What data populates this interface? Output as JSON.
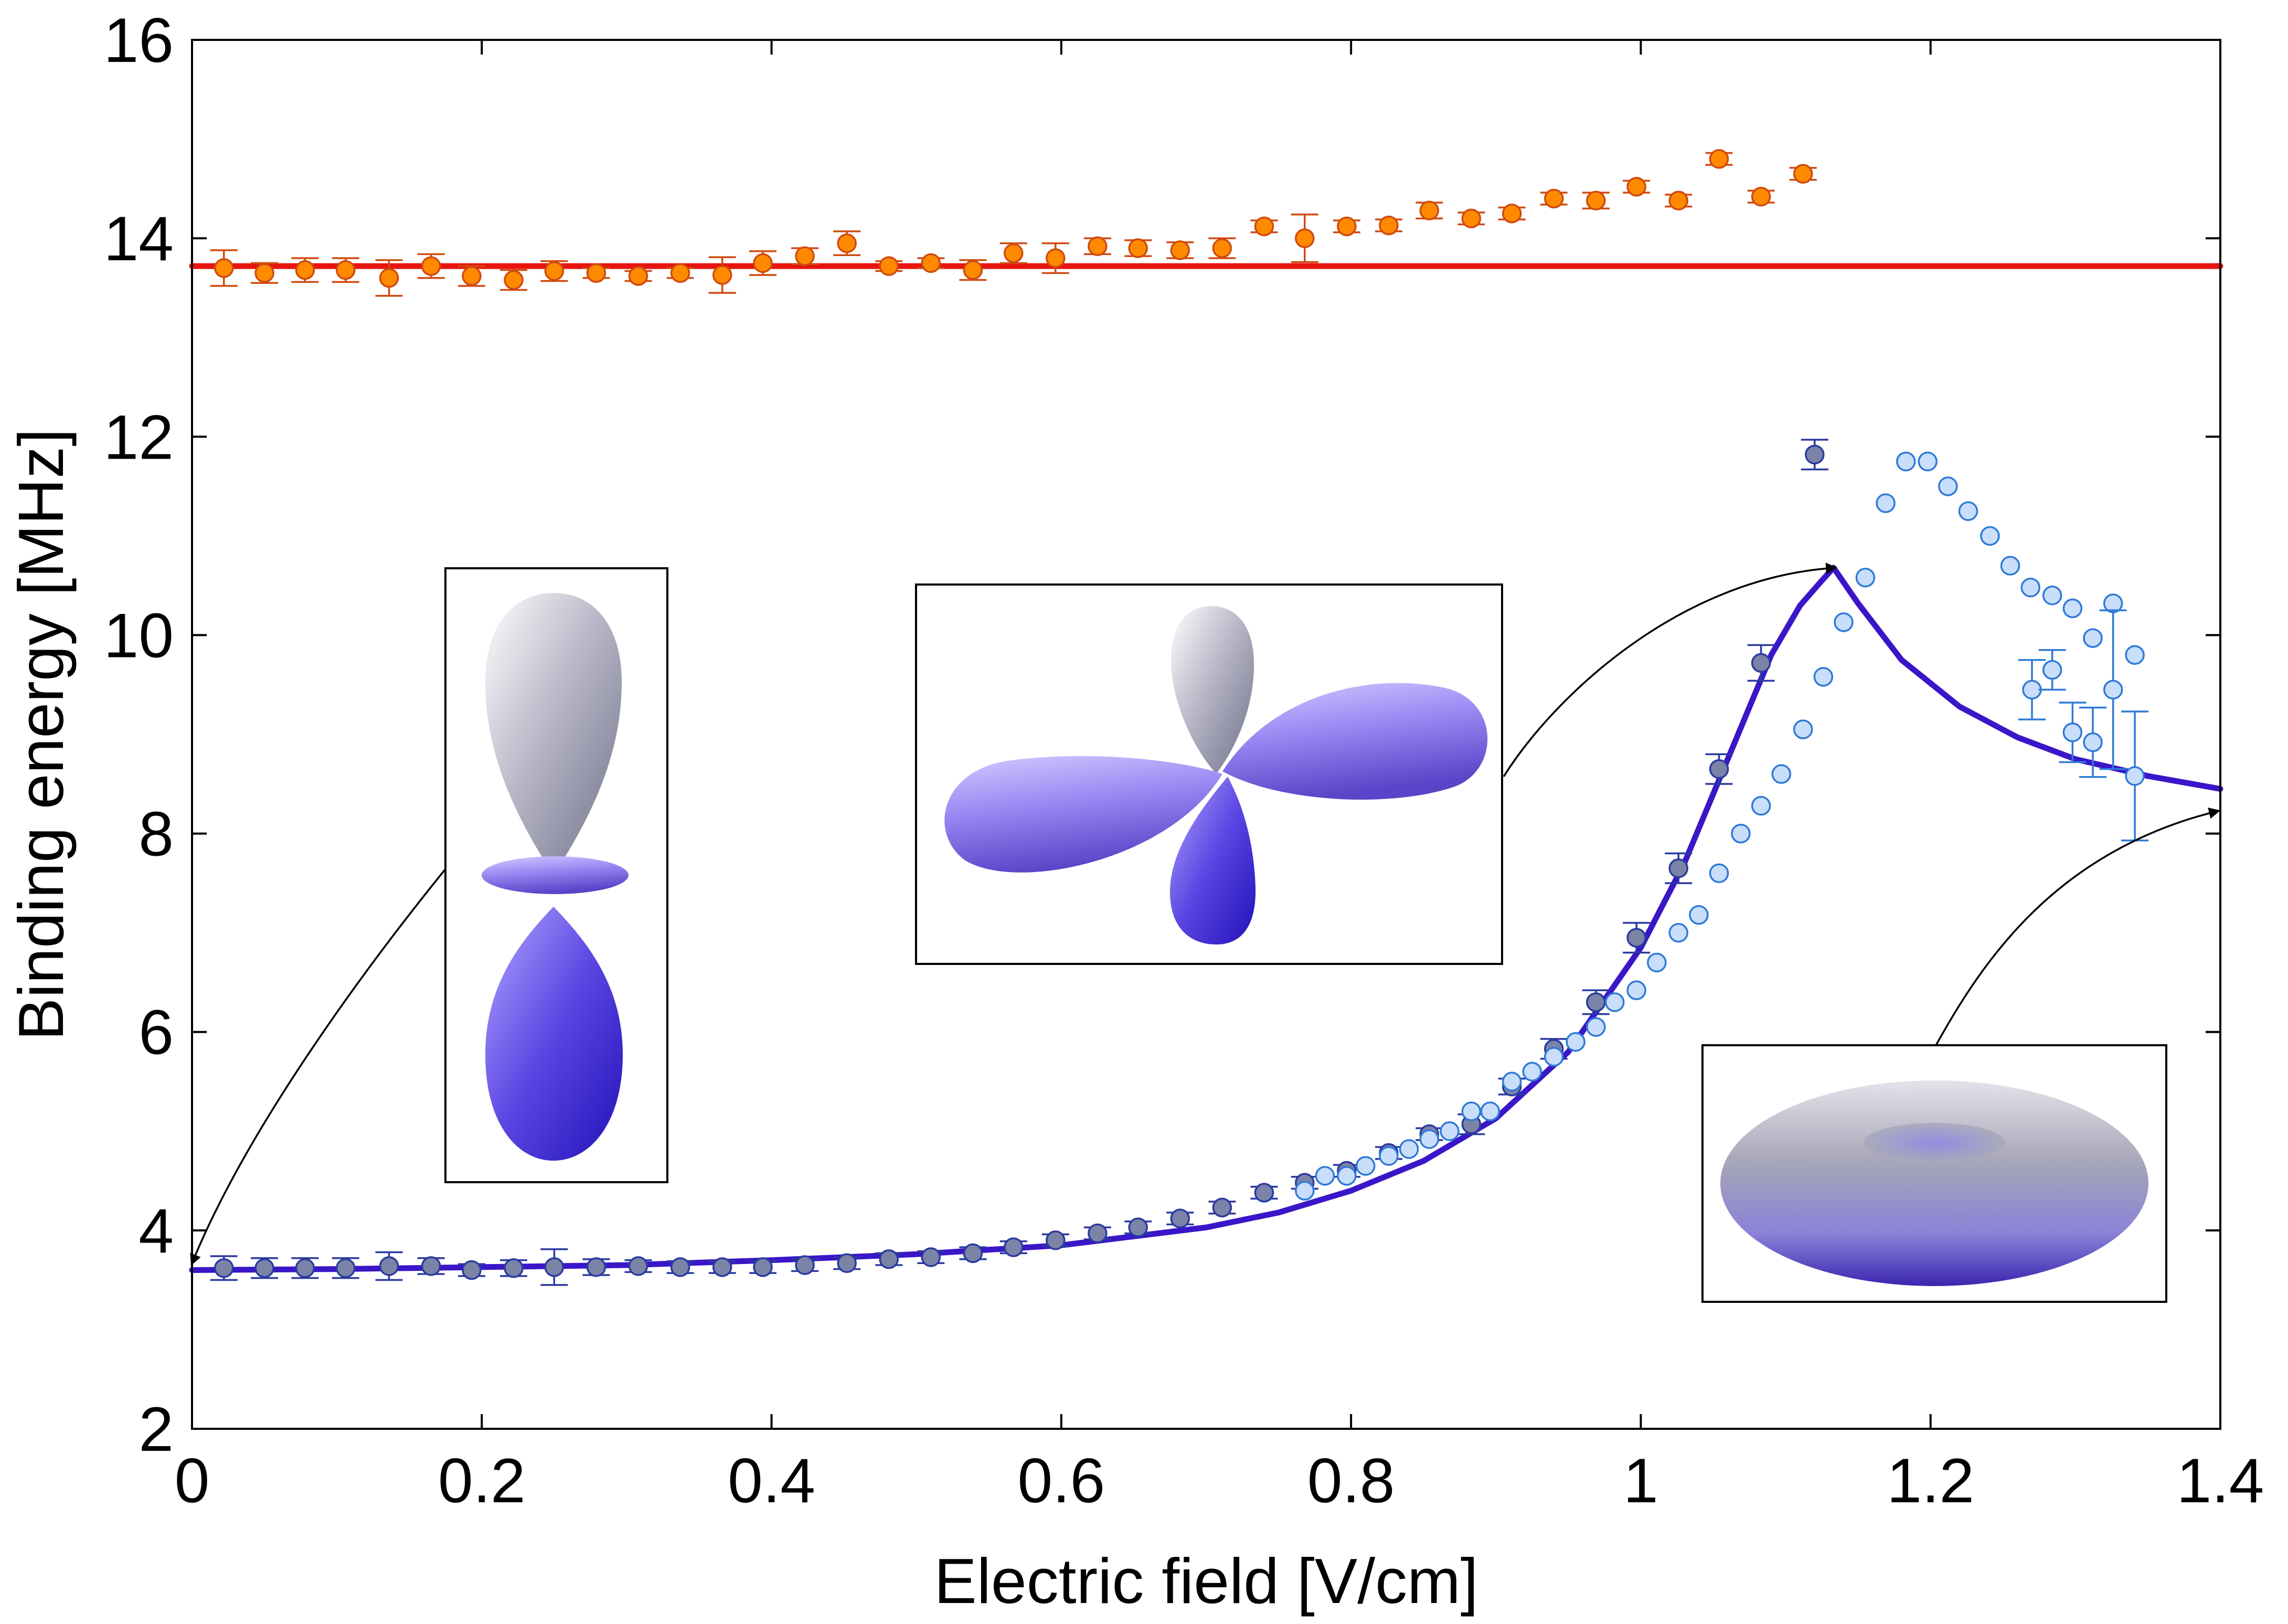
{
  "chart_data": {
    "type": "scatter",
    "xlabel": "Electric field [V/cm]",
    "ylabel": "Binding energy [MHz]",
    "xlim": [
      0,
      1.4
    ],
    "ylim": [
      2,
      16
    ],
    "xticks": [
      0,
      0.2,
      0.4,
      0.6,
      0.8,
      1,
      1.2,
      1.4
    ],
    "yticks": [
      2,
      4,
      6,
      8,
      10,
      12,
      14,
      16
    ],
    "xtick_labels": [
      "0",
      "0.2",
      "0.4",
      "0.6",
      "0.8",
      "1",
      "1.2",
      "1.4"
    ],
    "ytick_labels": [
      "2",
      "4",
      "6",
      "8",
      "10",
      "12",
      "14",
      "16"
    ],
    "grid": false,
    "colors": {
      "upper_line": "#e8140f",
      "upper_points_fill": "#ff8a00",
      "upper_points_edge": "#d04a10",
      "lower_line": "#3a16c8",
      "lower_dark_fill": "#7b83a6",
      "lower_light_fill": "#c9defa",
      "lower_light_edge": "#2f7ad8",
      "lower_dark_edge": "#2a3aa0"
    },
    "series": [
      {
        "name": "upper data",
        "kind": "points",
        "style": "orange",
        "x": [
          0.022,
          0.05,
          0.078,
          0.106,
          0.136,
          0.165,
          0.193,
          0.222,
          0.25,
          0.279,
          0.308,
          0.337,
          0.366,
          0.394,
          0.423,
          0.452,
          0.481,
          0.51,
          0.539,
          0.567,
          0.596,
          0.625,
          0.653,
          0.682,
          0.711,
          0.74,
          0.768,
          0.797,
          0.826,
          0.854,
          0.883,
          0.911,
          0.94,
          0.969,
          0.997,
          1.026,
          1.054,
          1.083,
          1.112
        ],
        "y": [
          13.7,
          13.65,
          13.68,
          13.68,
          13.6,
          13.72,
          13.62,
          13.58,
          13.67,
          13.65,
          13.62,
          13.65,
          13.63,
          13.75,
          13.82,
          13.95,
          13.72,
          13.75,
          13.68,
          13.85,
          13.8,
          13.92,
          13.9,
          13.88,
          13.9,
          14.12,
          14.0,
          14.12,
          14.13,
          14.28,
          14.2,
          14.25,
          14.4,
          14.38,
          14.52,
          14.38,
          14.8,
          14.42,
          14.65
        ],
        "err": [
          0.18,
          0.1,
          0.12,
          0.12,
          0.18,
          0.12,
          0.1,
          0.1,
          0.1,
          0.05,
          0.05,
          0.05,
          0.18,
          0.12,
          0.08,
          0.12,
          0.05,
          0.05,
          0.1,
          0.1,
          0.15,
          0.08,
          0.08,
          0.08,
          0.1,
          0.06,
          0.24,
          0.06,
          0.06,
          0.08,
          0.06,
          0.06,
          0.06,
          0.08,
          0.06,
          0.06,
          0.06,
          0.06,
          0.06
        ]
      },
      {
        "name": "lower data (dark)",
        "kind": "points",
        "style": "dark",
        "x": [
          0.022,
          0.05,
          0.078,
          0.106,
          0.136,
          0.165,
          0.193,
          0.222,
          0.25,
          0.279,
          0.308,
          0.337,
          0.366,
          0.394,
          0.423,
          0.452,
          0.481,
          0.51,
          0.539,
          0.567,
          0.596,
          0.625,
          0.653,
          0.682,
          0.711,
          0.74,
          0.768,
          0.797,
          0.826,
          0.854,
          0.883,
          0.911,
          0.94,
          0.969,
          0.997,
          1.026,
          1.054,
          1.083,
          1.12
        ],
        "y": [
          3.62,
          3.62,
          3.62,
          3.62,
          3.64,
          3.64,
          3.6,
          3.62,
          3.63,
          3.63,
          3.64,
          3.63,
          3.63,
          3.63,
          3.65,
          3.67,
          3.71,
          3.73,
          3.77,
          3.83,
          3.9,
          3.97,
          4.03,
          4.12,
          4.23,
          4.38,
          4.48,
          4.6,
          4.78,
          4.97,
          5.07,
          5.45,
          5.83,
          6.3,
          6.95,
          7.65,
          8.65,
          9.72,
          11.82
        ],
        "err": [
          0.12,
          0.1,
          0.1,
          0.1,
          0.14,
          0.08,
          0.06,
          0.08,
          0.18,
          0.08,
          0.06,
          0.06,
          0.06,
          0.06,
          0.06,
          0.06,
          0.06,
          0.06,
          0.06,
          0.06,
          0.06,
          0.06,
          0.06,
          0.06,
          0.06,
          0.06,
          0.06,
          0.06,
          0.06,
          0.06,
          0.1,
          0.08,
          0.1,
          0.12,
          0.15,
          0.15,
          0.15,
          0.18,
          0.15
        ]
      },
      {
        "name": "lower data (light)",
        "kind": "points",
        "style": "light",
        "x": [
          0.768,
          0.782,
          0.797,
          0.81,
          0.826,
          0.84,
          0.854,
          0.868,
          0.883,
          0.896,
          0.911,
          0.925,
          0.94,
          0.955,
          0.969,
          0.982,
          0.997,
          1.011,
          1.026,
          1.04,
          1.054,
          1.069,
          1.083,
          1.097,
          1.112,
          1.126,
          1.14,
          1.155,
          1.169,
          1.183,
          1.198,
          1.212,
          1.226,
          1.241,
          1.255,
          1.269,
          1.284,
          1.298,
          1.312,
          1.326,
          1.341
        ],
        "y": [
          4.4,
          4.55,
          4.55,
          4.65,
          4.75,
          4.82,
          4.92,
          5.0,
          5.2,
          5.2,
          5.5,
          5.6,
          5.75,
          5.9,
          6.05,
          6.3,
          6.42,
          6.7,
          7.0,
          7.18,
          7.6,
          8.0,
          8.28,
          8.6,
          9.05,
          9.58,
          10.13,
          10.58,
          11.33,
          11.75,
          11.75,
          11.5,
          11.25,
          11.0,
          10.7,
          10.48,
          10.4,
          10.27,
          9.97,
          10.32,
          9.8
        ]
      },
      {
        "name": "lower data (light, right)",
        "kind": "points",
        "style": "light",
        "x": [
          1.27,
          1.284,
          1.298,
          1.312,
          1.326,
          1.341
        ],
        "y": [
          9.45,
          9.65,
          9.02,
          8.92,
          9.45,
          8.58
        ],
        "err": [
          0.3,
          0.2,
          0.3,
          0.35,
          0.8,
          0.65
        ]
      },
      {
        "name": "upper theory",
        "kind": "line",
        "style": "red",
        "x": [
          0,
          1.4
        ],
        "y": [
          13.72,
          13.72
        ]
      },
      {
        "name": "lower theory",
        "kind": "line",
        "style": "blue",
        "x": [
          0,
          0.1,
          0.2,
          0.3,
          0.4,
          0.5,
          0.6,
          0.7,
          0.75,
          0.8,
          0.85,
          0.9,
          0.95,
          1.0,
          1.03,
          1.06,
          1.09,
          1.11,
          1.125,
          1.133,
          1.15,
          1.18,
          1.22,
          1.26,
          1.3,
          1.35,
          1.4
        ],
        "y": [
          3.6,
          3.61,
          3.63,
          3.65,
          3.7,
          3.76,
          3.85,
          4.03,
          4.18,
          4.4,
          4.7,
          5.13,
          5.8,
          6.85,
          7.7,
          8.75,
          9.8,
          10.3,
          10.55,
          10.68,
          10.32,
          9.75,
          9.28,
          8.97,
          8.75,
          8.58,
          8.45
        ]
      }
    ],
    "insets": [
      {
        "name": "inset-left",
        "shape": "vertical-lobes",
        "points_to": {
          "x": 0.0,
          "y": 3.65
        }
      },
      {
        "name": "inset-middle",
        "shape": "four-lobes",
        "points_to": {
          "x": 1.133,
          "y": 10.68
        }
      },
      {
        "name": "inset-right",
        "shape": "torus",
        "points_to": {
          "x": 1.4,
          "y": 8.45
        }
      }
    ]
  }
}
